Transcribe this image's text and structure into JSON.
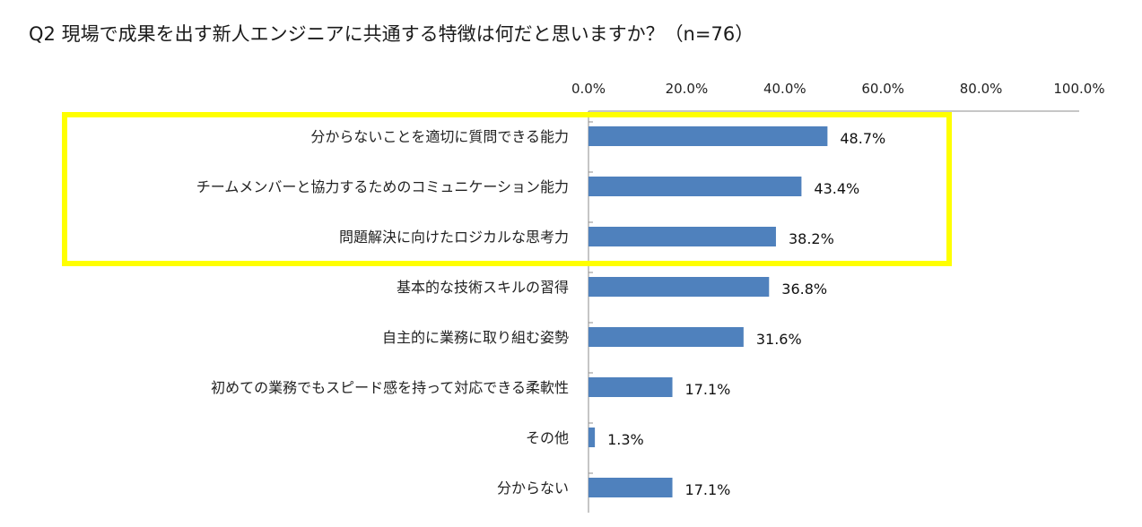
{
  "chart_data": {
    "type": "bar",
    "orientation": "horizontal",
    "title": "Q2 現場で成果を出す新人エンジニアに共通する特徴は何だと思いますか？（n=76）",
    "xlim": [
      0,
      100
    ],
    "x_ticks": [
      "0.0%",
      "20.0%",
      "40.0%",
      "60.0%",
      "80.0%",
      "100.0%"
    ],
    "categories": [
      "分からないことを適切に質問できる能力",
      "チームメンバーと協力するためのコミュニケーション能力",
      "問題解決に向けたロジカルな思考力",
      "基本的な技術スキルの習得",
      "自主的に業務に取り組む姿勢",
      "初めての業務でもスピード感を持って対応できる柔軟性",
      "その他",
      "分からない"
    ],
    "values": [
      48.7,
      43.4,
      38.2,
      36.8,
      31.6,
      17.1,
      1.3,
      17.1
    ],
    "value_labels": [
      "48.7%",
      "43.4%",
      "38.2%",
      "36.8%",
      "31.6%",
      "17.1%",
      "1.3%",
      "17.1%"
    ],
    "bar_color": "#4f81bd",
    "highlight": {
      "count": 3,
      "color": "#ffff00"
    },
    "axis_position": "top",
    "grid": false,
    "legend": "none"
  }
}
